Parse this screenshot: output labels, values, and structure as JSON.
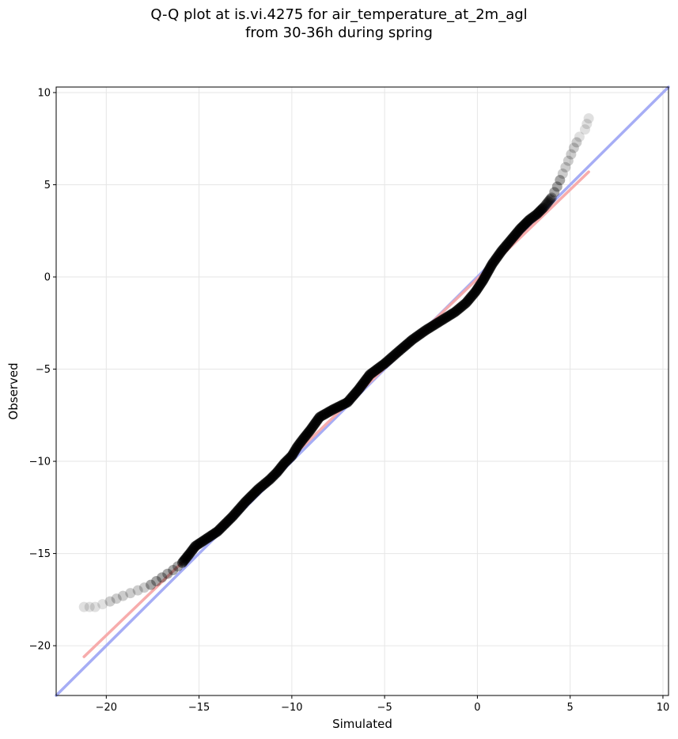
{
  "chart_data": {
    "type": "scatter",
    "title_line1": "Q-Q plot at is.vi.4275 for air_temperature_at_2m_agl",
    "title_line2": "from 30-36h during spring",
    "xlabel": "Simulated",
    "ylabel": "Observed",
    "xlim": [
      -22.7,
      10.3
    ],
    "ylim": [
      -22.7,
      10.3
    ],
    "xticks": [
      -20,
      -15,
      -10,
      -5,
      0,
      5,
      10
    ],
    "yticks": [
      -20,
      -15,
      -10,
      -5,
      0,
      5,
      10
    ],
    "xtick_labels": [
      "−20",
      "−15",
      "−10",
      "−5",
      "0",
      "5",
      "10"
    ],
    "ytick_labels": [
      "−20",
      "−15",
      "−10",
      "−5",
      "0",
      "5",
      "10"
    ],
    "grid": true,
    "quantile_curve": {
      "x": [
        -21.2,
        -20.6,
        -19.8,
        -19.1,
        -18.3,
        -17.6,
        -17.0,
        -16.4,
        -15.9,
        -15.5,
        -15.2,
        -14.6,
        -14.0,
        -13.2,
        -12.5,
        -11.8,
        -11.2,
        -10.8,
        -10.4,
        -10.0,
        -9.7,
        -9.4,
        -9.0,
        -8.5,
        -7.8,
        -7.0,
        -6.4,
        -5.8,
        -5.0,
        -4.2,
        -3.5,
        -2.8,
        -2.0,
        -1.2,
        -0.6,
        -0.1,
        0.3,
        0.8,
        1.3,
        1.8,
        2.3,
        2.8,
        3.2,
        3.6,
        4.0,
        4.3,
        4.6,
        4.9,
        5.2,
        5.5,
        5.8,
        6.0
      ],
      "y": [
        -17.9,
        -17.9,
        -17.6,
        -17.3,
        -17.0,
        -16.7,
        -16.3,
        -15.9,
        -15.5,
        -15.0,
        -14.6,
        -14.2,
        -13.8,
        -13.0,
        -12.2,
        -11.5,
        -11.0,
        -10.6,
        -10.1,
        -9.7,
        -9.2,
        -8.8,
        -8.3,
        -7.6,
        -7.2,
        -6.8,
        -6.1,
        -5.3,
        -4.7,
        -4.0,
        -3.4,
        -2.9,
        -2.4,
        -1.9,
        -1.4,
        -0.8,
        -0.2,
        0.7,
        1.4,
        2.0,
        2.6,
        3.1,
        3.4,
        3.8,
        4.3,
        4.9,
        5.6,
        6.3,
        7.0,
        7.6,
        8.0,
        8.6
      ]
    },
    "reference_lines": [
      {
        "kind": "identity",
        "color": "#a2a9f5",
        "x": [
          -22.7,
          10.3
        ],
        "y": [
          -22.7,
          10.3
        ]
      },
      {
        "kind": "fit",
        "color": "#f7a8a8",
        "x": [
          -21.2,
          6.0
        ],
        "y": [
          -20.6,
          5.7
        ]
      }
    ],
    "colors": {
      "points": "#000000",
      "identity_line": "#a2a9f5",
      "fit_line": "#f7a8a8",
      "grid": "#e6e6e6"
    }
  }
}
